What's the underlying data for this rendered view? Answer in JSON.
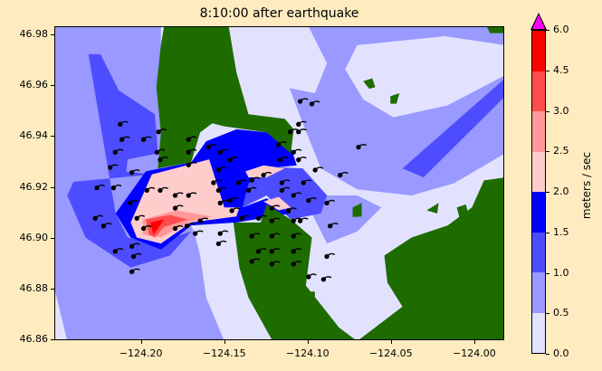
{
  "chart_data": {
    "type": "heatmap",
    "title": "8:10:00 after earthquake",
    "xlabel": "",
    "ylabel": "",
    "xlim": [
      -124.252,
      -123.982
    ],
    "ylim": [
      46.8597,
      46.9832
    ],
    "xticks": [
      -124.2,
      -124.15,
      -124.1,
      -124.05,
      -124.0
    ],
    "xtick_labels": [
      "−124.20",
      "−124.15",
      "−124.10",
      "−124.05",
      "−124.00"
    ],
    "yticks": [
      46.86,
      46.88,
      46.9,
      46.92,
      46.94,
      46.96,
      46.98
    ],
    "ytick_labels": [
      "46.86",
      "46.88",
      "46.90",
      "46.92",
      "46.94",
      "46.96",
      "46.98"
    ],
    "colorbar": {
      "label": "meters / sec",
      "bounds": [
        0.0,
        0.5,
        1.0,
        1.5,
        2.0,
        2.5,
        3.0,
        4.5,
        6.0
      ],
      "tick_labels": [
        "0.0",
        "0.5",
        "1.0",
        "1.5",
        "2.0",
        "2.5",
        "3.0",
        "4.5",
        "6.0"
      ],
      "colors": [
        "#e2e2ff",
        "#9999ff",
        "#4d4dff",
        "#0000ff",
        "#ffcccc",
        "#ff9999",
        "#ff4d4d",
        "#ff0000"
      ],
      "over_color": "#ff00ff",
      "extend": "max"
    },
    "land_color": "#1e6b00",
    "particles": [
      [
        -124.213,
        46.945
      ],
      [
        -124.212,
        46.939
      ],
      [
        -124.199,
        46.939
      ],
      [
        -124.216,
        46.934
      ],
      [
        -124.219,
        46.928
      ],
      [
        -124.206,
        46.926
      ],
      [
        -124.227,
        46.92
      ],
      [
        -124.217,
        46.92
      ],
      [
        -124.197,
        46.919
      ],
      [
        -124.189,
        46.919
      ],
      [
        -124.18,
        46.917
      ],
      [
        -124.172,
        46.917
      ],
      [
        -124.207,
        46.914
      ],
      [
        -124.18,
        46.912
      ],
      [
        -124.228,
        46.908
      ],
      [
        -124.223,
        46.905
      ],
      [
        -124.203,
        46.908
      ],
      [
        -124.199,
        46.904
      ],
      [
        -124.216,
        46.895
      ],
      [
        -124.206,
        46.897
      ],
      [
        -124.205,
        46.893
      ],
      [
        -124.206,
        46.887
      ],
      [
        -124.19,
        46.942
      ],
      [
        -124.191,
        46.934
      ],
      [
        -124.189,
        46.931
      ],
      [
        -124.172,
        46.939
      ],
      [
        -124.172,
        46.934
      ],
      [
        -124.172,
        46.929
      ],
      [
        -124.16,
        46.936
      ],
      [
        -124.153,
        46.934
      ],
      [
        -124.147,
        46.931
      ],
      [
        -124.154,
        46.927
      ],
      [
        -124.157,
        46.922
      ],
      [
        -124.154,
        46.919
      ],
      [
        -124.153,
        46.914
      ],
      [
        -124.147,
        46.915
      ],
      [
        -124.142,
        46.922
      ],
      [
        -124.146,
        46.911
      ],
      [
        -124.14,
        46.908
      ],
      [
        -124.13,
        46.908
      ],
      [
        -124.136,
        46.919
      ],
      [
        -124.134,
        46.923
      ],
      [
        -124.127,
        46.925
      ],
      [
        -124.122,
        46.912
      ],
      [
        -124.116,
        46.922
      ],
      [
        -124.116,
        46.919
      ],
      [
        -124.112,
        46.911
      ],
      [
        -124.109,
        46.917
      ],
      [
        -124.1,
        46.915
      ],
      [
        -124.089,
        46.914
      ],
      [
        -124.122,
        46.907
      ],
      [
        -124.109,
        46.907
      ],
      [
        -124.105,
        46.907
      ],
      [
        -124.134,
        46.901
      ],
      [
        -124.122,
        46.901
      ],
      [
        -124.109,
        46.901
      ],
      [
        -124.13,
        46.895
      ],
      [
        -124.122,
        46.895
      ],
      [
        -124.109,
        46.895
      ],
      [
        -124.134,
        46.891
      ],
      [
        -124.122,
        46.89
      ],
      [
        -124.109,
        46.89
      ],
      [
        -124.165,
        46.907
      ],
      [
        -124.173,
        46.905
      ],
      [
        -124.18,
        46.904
      ],
      [
        -124.168,
        46.902
      ],
      [
        -124.153,
        46.902
      ],
      [
        -124.154,
        46.898
      ],
      [
        -124.105,
        46.954
      ],
      [
        -124.098,
        46.953
      ],
      [
        -124.106,
        46.945
      ],
      [
        -124.111,
        46.942
      ],
      [
        -124.106,
        46.942
      ],
      [
        -124.118,
        46.937
      ],
      [
        -124.117,
        46.931
      ],
      [
        -124.109,
        46.934
      ],
      [
        -124.106,
        46.931
      ],
      [
        -124.096,
        46.927
      ],
      [
        -124.081,
        46.925
      ],
      [
        -124.07,
        46.936
      ],
      [
        -124.103,
        46.922
      ],
      [
        -124.087,
        46.905
      ],
      [
        -124.089,
        46.893
      ],
      [
        -124.1,
        46.885
      ],
      [
        -124.091,
        46.884
      ]
    ]
  }
}
